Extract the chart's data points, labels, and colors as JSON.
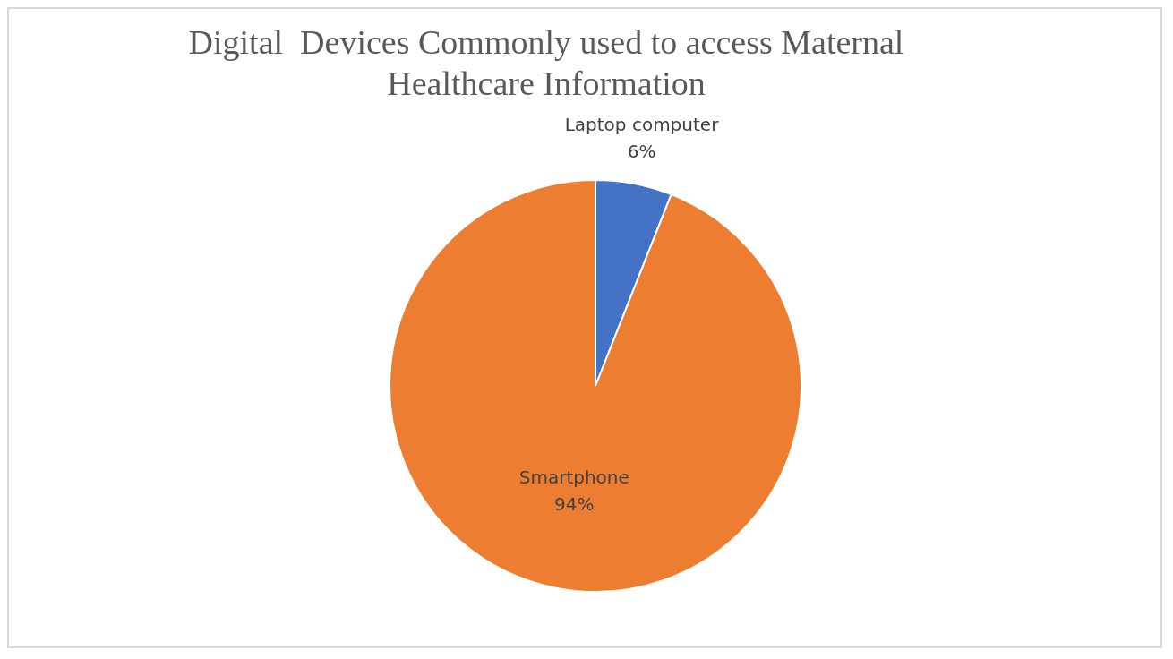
{
  "chart_data": {
    "type": "pie",
    "title": "Digital  Devices Commonly used to access Maternal Healthcare Information",
    "categories": [
      "Laptop computer",
      "Smartphone"
    ],
    "values": [
      6,
      94
    ],
    "value_labels": [
      "6%",
      "94%"
    ],
    "colors": [
      "#4472c4",
      "#ed7d31"
    ]
  }
}
